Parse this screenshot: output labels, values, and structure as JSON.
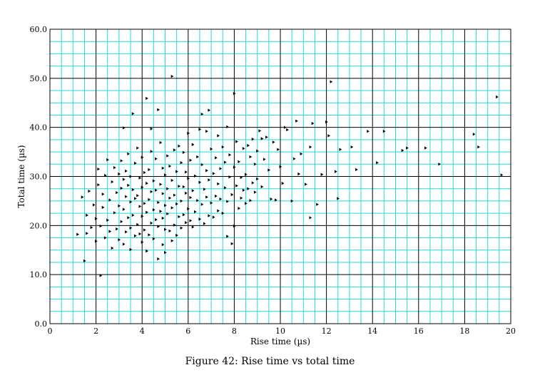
{
  "figure": {
    "caption": "Figure 42: Rise time vs total time"
  },
  "chart_data": {
    "type": "scatter",
    "xlabel": "Rise time (µs)",
    "ylabel": "Total time (µs)",
    "xlim": [
      0,
      20
    ],
    "ylim": [
      0,
      60
    ],
    "x_ticks": [
      "0",
      "2",
      "4",
      "6",
      "8",
      "10",
      "12",
      "14",
      "16",
      "18",
      "20"
    ],
    "y_ticks": [
      "0.0",
      "10.0",
      "20.0",
      "30.0",
      "40.0",
      "50.0",
      "60.0"
    ],
    "grid": true,
    "colors": {
      "minor_grid": "#29d6d6",
      "major_grid": "#000000",
      "marker": "#000000"
    },
    "marker": "right-pointing triangle",
    "series": [
      {
        "points": [
          [
            1.2,
            18.2
          ],
          [
            1.4,
            25.8
          ],
          [
            1.5,
            12.8
          ],
          [
            1.6,
            18.4
          ],
          [
            1.6,
            22.1
          ],
          [
            1.7,
            27.0
          ],
          [
            1.8,
            19.6
          ],
          [
            1.9,
            24.2
          ],
          [
            2.0,
            16.8
          ],
          [
            2.0,
            21.4
          ],
          [
            2.1,
            28.3
          ],
          [
            2.1,
            31.5
          ],
          [
            2.2,
            9.8
          ],
          [
            2.2,
            19.9
          ],
          [
            2.3,
            23.7
          ],
          [
            2.3,
            26.4
          ],
          [
            2.4,
            17.5
          ],
          [
            2.4,
            30.2
          ],
          [
            2.5,
            21.1
          ],
          [
            2.5,
            33.4
          ],
          [
            2.6,
            18.8
          ],
          [
            2.6,
            25.2
          ],
          [
            2.7,
            15.4
          ],
          [
            2.7,
            28.9
          ],
          [
            2.8,
            22.6
          ],
          [
            2.8,
            31.8
          ],
          [
            2.9,
            19.3
          ],
          [
            2.9,
            26.7
          ],
          [
            3.0,
            17.1
          ],
          [
            3.0,
            24.0
          ],
          [
            3.0,
            30.5
          ],
          [
            3.1,
            20.8
          ],
          [
            3.1,
            27.6
          ],
          [
            3.1,
            33.2
          ],
          [
            3.2,
            16.2
          ],
          [
            3.2,
            23.3
          ],
          [
            3.2,
            29.4
          ],
          [
            3.2,
            39.9
          ],
          [
            3.3,
            18.7
          ],
          [
            3.3,
            25.9
          ],
          [
            3.3,
            31.1
          ],
          [
            3.4,
            21.6
          ],
          [
            3.4,
            28.2
          ],
          [
            3.4,
            34.6
          ],
          [
            3.5,
            15.1
          ],
          [
            3.5,
            19.5
          ],
          [
            3.5,
            24.8
          ],
          [
            3.5,
            30.0
          ],
          [
            3.6,
            22.1
          ],
          [
            3.6,
            27.3
          ],
          [
            3.6,
            42.8
          ],
          [
            3.7,
            17.9
          ],
          [
            3.7,
            25.5
          ],
          [
            3.7,
            32.7
          ],
          [
            3.8,
            20.2
          ],
          [
            3.8,
            26.1
          ],
          [
            3.8,
            35.8
          ],
          [
            3.9,
            18.3
          ],
          [
            3.9,
            23.9
          ],
          [
            3.9,
            29.7
          ],
          [
            4.0,
            16.6
          ],
          [
            4.0,
            21.9
          ],
          [
            4.0,
            27.8
          ],
          [
            4.0,
            33.9
          ],
          [
            4.1,
            19.1
          ],
          [
            4.1,
            24.5
          ],
          [
            4.1,
            30.8
          ],
          [
            4.2,
            14.8
          ],
          [
            4.2,
            22.7
          ],
          [
            4.2,
            28.6
          ],
          [
            4.2,
            45.9
          ],
          [
            4.3,
            18.1
          ],
          [
            4.3,
            25.3
          ],
          [
            4.3,
            31.4
          ],
          [
            4.4,
            20.5
          ],
          [
            4.4,
            26.9
          ],
          [
            4.4,
            35.1
          ],
          [
            4.4,
            39.7
          ],
          [
            4.5,
            17.3
          ],
          [
            4.5,
            23.2
          ],
          [
            4.5,
            29.1
          ],
          [
            4.6,
            21.2
          ],
          [
            4.6,
            27.2
          ],
          [
            4.6,
            33.6
          ],
          [
            4.7,
            13.2
          ],
          [
            4.7,
            19.8
          ],
          [
            4.7,
            24.7
          ],
          [
            4.7,
            43.6
          ],
          [
            4.8,
            22.9
          ],
          [
            4.8,
            28.4
          ],
          [
            4.8,
            36.9
          ],
          [
            4.9,
            16.1
          ],
          [
            4.9,
            21.5
          ],
          [
            4.9,
            26.5
          ],
          [
            4.9,
            31.7
          ],
          [
            5.0,
            19.2
          ],
          [
            5.0,
            24.1
          ],
          [
            5.0,
            30.3
          ],
          [
            5.0,
            14.5
          ],
          [
            5.1,
            22.4
          ],
          [
            5.1,
            27.5
          ],
          [
            5.1,
            34.2
          ],
          [
            5.2,
            18.9
          ],
          [
            5.2,
            25.6
          ],
          [
            5.2,
            32.1
          ],
          [
            5.3,
            16.9
          ],
          [
            5.3,
            23.6
          ],
          [
            5.3,
            29.2
          ],
          [
            5.3,
            50.4
          ],
          [
            5.4,
            20.1
          ],
          [
            5.4,
            26.2
          ],
          [
            5.4,
            35.4
          ],
          [
            5.5,
            18.0
          ],
          [
            5.5,
            24.4
          ],
          [
            5.5,
            31.0
          ],
          [
            5.6,
            21.8
          ],
          [
            5.6,
            28.0
          ],
          [
            5.6,
            36.2
          ],
          [
            5.7,
            19.5
          ],
          [
            5.7,
            25.0
          ],
          [
            5.7,
            32.8
          ],
          [
            5.8,
            22.2
          ],
          [
            5.8,
            27.9
          ],
          [
            5.8,
            34.9
          ],
          [
            5.9,
            20.6
          ],
          [
            5.9,
            26.6
          ],
          [
            5.9,
            30.9
          ],
          [
            6.0,
            23.4
          ],
          [
            6.0,
            29.6
          ],
          [
            6.0,
            38.8
          ],
          [
            6.1,
            21.0
          ],
          [
            6.1,
            25.7
          ],
          [
            6.1,
            33.3
          ],
          [
            6.2,
            19.7
          ],
          [
            6.2,
            27.1
          ],
          [
            6.2,
            36.5
          ],
          [
            6.3,
            22.8
          ],
          [
            6.3,
            30.1
          ],
          [
            6.4,
            25.1
          ],
          [
            6.4,
            34.0
          ],
          [
            6.5,
            21.3
          ],
          [
            6.5,
            28.8
          ],
          [
            6.5,
            39.6
          ],
          [
            6.6,
            24.3
          ],
          [
            6.6,
            32.4
          ],
          [
            6.6,
            42.7
          ],
          [
            6.7,
            20.4
          ],
          [
            6.7,
            27.4
          ],
          [
            6.8,
            25.8
          ],
          [
            6.8,
            31.2
          ],
          [
            6.8,
            39.2
          ],
          [
            6.9,
            22.0
          ],
          [
            6.9,
            29.3
          ],
          [
            6.9,
            43.5
          ],
          [
            7.0,
            24.6
          ],
          [
            7.0,
            35.6
          ],
          [
            7.1,
            21.7
          ],
          [
            7.1,
            30.6
          ],
          [
            7.2,
            26.0
          ],
          [
            7.2,
            33.8
          ],
          [
            7.3,
            23.0
          ],
          [
            7.3,
            28.5
          ],
          [
            7.3,
            38.3
          ],
          [
            7.4,
            25.4
          ],
          [
            7.4,
            31.6
          ],
          [
            7.5,
            22.5
          ],
          [
            7.5,
            36.0
          ],
          [
            7.6,
            27.7
          ],
          [
            7.6,
            32.9
          ],
          [
            7.7,
            17.8
          ],
          [
            7.7,
            24.9
          ],
          [
            7.7,
            40.1
          ],
          [
            7.8,
            29.9
          ],
          [
            7.8,
            34.4
          ],
          [
            7.9,
            16.3
          ],
          [
            7.9,
            26.3
          ],
          [
            8.0,
            19.9
          ],
          [
            8.0,
            31.9
          ],
          [
            8.0,
            46.9
          ],
          [
            8.1,
            28.1
          ],
          [
            8.1,
            37.1
          ],
          [
            8.2,
            23.5
          ],
          [
            8.2,
            33.0
          ],
          [
            8.3,
            25.6
          ],
          [
            8.3,
            29.8
          ],
          [
            8.4,
            27.2
          ],
          [
            8.4,
            35.7
          ],
          [
            8.5,
            24.5
          ],
          [
            8.5,
            30.4
          ],
          [
            8.6,
            27.5
          ],
          [
            8.6,
            36.3
          ],
          [
            8.7,
            25.1
          ],
          [
            8.7,
            34.0
          ],
          [
            8.8,
            28.7
          ],
          [
            8.8,
            37.6
          ],
          [
            8.9,
            26.8
          ],
          [
            8.9,
            32.5
          ],
          [
            9.0,
            29.5
          ],
          [
            9.0,
            35.2
          ],
          [
            9.1,
            39.3
          ],
          [
            9.2,
            27.9
          ],
          [
            9.2,
            37.7
          ],
          [
            9.3,
            33.5
          ],
          [
            9.4,
            38.0
          ],
          [
            9.5,
            31.3
          ],
          [
            9.6,
            25.4
          ],
          [
            9.7,
            37.0
          ],
          [
            9.8,
            25.2
          ],
          [
            9.9,
            35.5
          ],
          [
            10.0,
            32.0
          ],
          [
            10.1,
            28.6
          ],
          [
            10.2,
            40.0
          ],
          [
            10.3,
            39.5
          ],
          [
            10.5,
            25.0
          ],
          [
            10.6,
            33.6
          ],
          [
            10.7,
            41.3
          ],
          [
            10.8,
            30.5
          ],
          [
            10.9,
            34.6
          ],
          [
            11.1,
            28.4
          ],
          [
            11.3,
            21.6
          ],
          [
            11.3,
            36.0
          ],
          [
            11.4,
            40.8
          ],
          [
            11.6,
            24.3
          ],
          [
            11.8,
            30.4
          ],
          [
            12.0,
            41.1
          ],
          [
            12.1,
            38.3
          ],
          [
            12.2,
            49.3
          ],
          [
            12.4,
            31.0
          ],
          [
            12.5,
            25.5
          ],
          [
            12.6,
            35.5
          ],
          [
            13.1,
            36.0
          ],
          [
            13.3,
            31.4
          ],
          [
            13.8,
            39.2
          ],
          [
            14.2,
            32.8
          ],
          [
            14.5,
            39.2
          ],
          [
            15.3,
            35.3
          ],
          [
            15.5,
            35.8
          ],
          [
            16.3,
            35.8
          ],
          [
            16.9,
            32.5
          ],
          [
            18.4,
            38.6
          ],
          [
            18.6,
            36.0
          ],
          [
            19.4,
            46.2
          ],
          [
            19.6,
            30.3
          ]
        ]
      }
    ]
  }
}
